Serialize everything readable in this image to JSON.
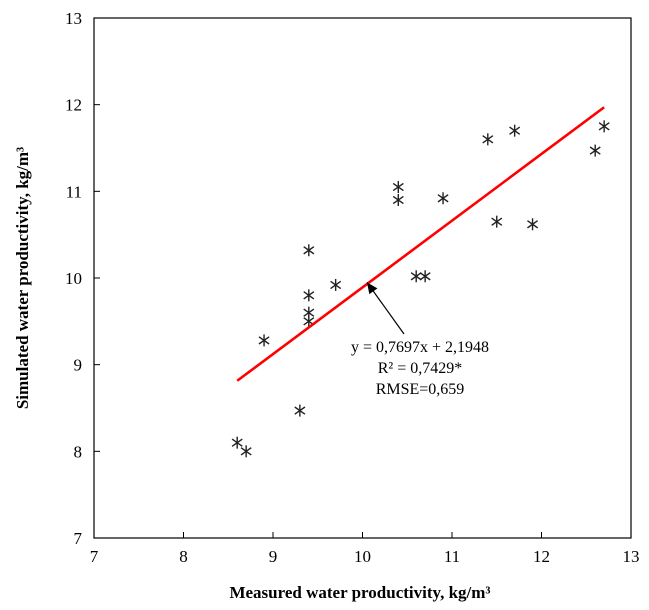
{
  "chart_data": {
    "type": "scatter",
    "title": "",
    "xlabel": "Measured water productivity, kg/m³",
    "ylabel": "Simulated water productivity, kg/m³",
    "xlim": [
      7,
      13
    ],
    "ylim": [
      7,
      13
    ],
    "x_ticks": [
      "7",
      "8",
      "9",
      "10",
      "11",
      "12",
      "13"
    ],
    "y_ticks": [
      "7",
      "8",
      "9",
      "10",
      "11",
      "12",
      "13"
    ],
    "grid": false,
    "legend": "none",
    "marker": "asterisk",
    "points": [
      [
        8.6,
        8.1
      ],
      [
        8.7,
        8.0
      ],
      [
        8.9,
        9.28
      ],
      [
        9.3,
        8.47
      ],
      [
        9.4,
        10.32
      ],
      [
        9.4,
        9.8
      ],
      [
        9.4,
        9.6
      ],
      [
        9.4,
        9.5
      ],
      [
        9.7,
        9.92
      ],
      [
        10.4,
        11.05
      ],
      [
        10.4,
        10.9
      ],
      [
        10.6,
        10.02
      ],
      [
        10.7,
        10.02
      ],
      [
        10.9,
        10.92
      ],
      [
        11.4,
        11.6
      ],
      [
        11.5,
        10.65
      ],
      [
        11.7,
        11.7
      ],
      [
        11.9,
        10.62
      ],
      [
        12.6,
        11.47
      ],
      [
        12.7,
        11.75
      ]
    ],
    "trendline": {
      "slope": 0.7697,
      "intercept": 2.1948,
      "x_range": [
        8.6,
        12.7
      ],
      "color": "#ff0000"
    },
    "annotation": {
      "lines": [
        "y = 0,7697x + 2,1948",
        "R² = 0,7429*",
        "RMSE=0,659"
      ],
      "arrow_target": [
        10.05,
        9.95
      ]
    },
    "colors": {
      "points": "#222222",
      "trendline": "#ff0000",
      "axes": "#000000"
    }
  }
}
